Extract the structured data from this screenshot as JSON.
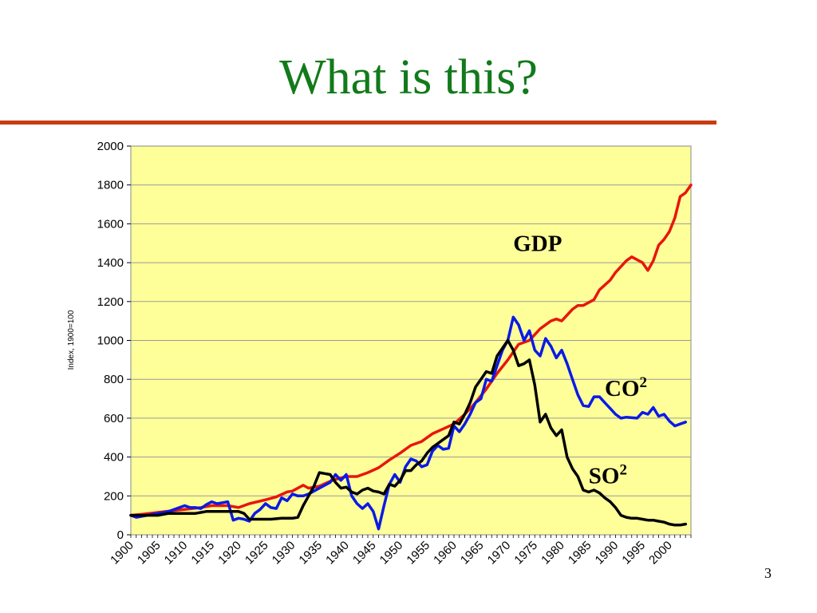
{
  "slide": {
    "title": "What is this?",
    "page_number": "3",
    "title_color": "#127a1a",
    "rule_color": "#c83c12"
  },
  "chart_data": {
    "type": "line",
    "title": "",
    "xlabel": "",
    "ylabel": "Index, 1900=100",
    "xlim": [
      1900,
      2004
    ],
    "ylim": [
      0,
      2000
    ],
    "y_ticks": [
      0,
      200,
      400,
      600,
      800,
      1000,
      1200,
      1400,
      1600,
      1800,
      2000
    ],
    "x_ticks": [
      1900,
      1905,
      1910,
      1915,
      1920,
      1925,
      1930,
      1935,
      1940,
      1945,
      1950,
      1955,
      1960,
      1965,
      1970,
      1975,
      1980,
      1985,
      1990,
      1995,
      2000
    ],
    "grid": true,
    "plot_background": "#ffff99",
    "series": [
      {
        "name": "GDP",
        "label_main": "GDP",
        "label_sup": "",
        "color": "#e8160c",
        "points": [
          [
            1900,
            100
          ],
          [
            1902,
            105
          ],
          [
            1905,
            115
          ],
          [
            1908,
            125
          ],
          [
            1910,
            130
          ],
          [
            1913,
            140
          ],
          [
            1915,
            150
          ],
          [
            1918,
            150
          ],
          [
            1920,
            140
          ],
          [
            1922,
            160
          ],
          [
            1925,
            180
          ],
          [
            1927,
            195
          ],
          [
            1929,
            220
          ],
          [
            1930,
            225
          ],
          [
            1932,
            255
          ],
          [
            1933,
            240
          ],
          [
            1935,
            250
          ],
          [
            1937,
            275
          ],
          [
            1938,
            285
          ],
          [
            1940,
            300
          ],
          [
            1942,
            300
          ],
          [
            1944,
            320
          ],
          [
            1946,
            345
          ],
          [
            1948,
            385
          ],
          [
            1950,
            420
          ],
          [
            1952,
            460
          ],
          [
            1954,
            480
          ],
          [
            1956,
            520
          ],
          [
            1958,
            545
          ],
          [
            1960,
            570
          ],
          [
            1962,
            620
          ],
          [
            1964,
            680
          ],
          [
            1966,
            750
          ],
          [
            1968,
            830
          ],
          [
            1970,
            900
          ],
          [
            1972,
            980
          ],
          [
            1974,
            1000
          ],
          [
            1976,
            1060
          ],
          [
            1978,
            1100
          ],
          [
            1979,
            1110
          ],
          [
            1980,
            1100
          ],
          [
            1982,
            1160
          ],
          [
            1983,
            1180
          ],
          [
            1984,
            1180
          ],
          [
            1986,
            1210
          ],
          [
            1987,
            1260
          ],
          [
            1989,
            1310
          ],
          [
            1990,
            1350
          ],
          [
            1992,
            1410
          ],
          [
            1993,
            1430
          ],
          [
            1995,
            1400
          ],
          [
            1996,
            1360
          ],
          [
            1997,
            1410
          ],
          [
            1998,
            1490
          ],
          [
            1999,
            1520
          ],
          [
            2000,
            1560
          ],
          [
            2001,
            1630
          ],
          [
            2002,
            1740
          ],
          [
            2003,
            1760
          ],
          [
            2004,
            1800
          ]
        ]
      },
      {
        "name": "CO²",
        "label_main": "CO",
        "label_sup": "2",
        "color": "#0a1ae8",
        "points": [
          [
            1900,
            100
          ],
          [
            1901,
            90
          ],
          [
            1903,
            100
          ],
          [
            1905,
            110
          ],
          [
            1907,
            120
          ],
          [
            1909,
            140
          ],
          [
            1910,
            150
          ],
          [
            1911,
            140
          ],
          [
            1912,
            140
          ],
          [
            1913,
            135
          ],
          [
            1914,
            155
          ],
          [
            1915,
            170
          ],
          [
            1916,
            160
          ],
          [
            1917,
            165
          ],
          [
            1918,
            170
          ],
          [
            1919,
            75
          ],
          [
            1920,
            85
          ],
          [
            1921,
            80
          ],
          [
            1922,
            70
          ],
          [
            1923,
            110
          ],
          [
            1924,
            130
          ],
          [
            1925,
            160
          ],
          [
            1926,
            140
          ],
          [
            1927,
            135
          ],
          [
            1928,
            190
          ],
          [
            1929,
            175
          ],
          [
            1930,
            210
          ],
          [
            1931,
            200
          ],
          [
            1932,
            200
          ],
          [
            1933,
            210
          ],
          [
            1935,
            240
          ],
          [
            1937,
            270
          ],
          [
            1938,
            310
          ],
          [
            1939,
            280
          ],
          [
            1940,
            310
          ],
          [
            1941,
            200
          ],
          [
            1942,
            160
          ],
          [
            1943,
            135
          ],
          [
            1944,
            160
          ],
          [
            1945,
            120
          ],
          [
            1946,
            30
          ],
          [
            1947,
            150
          ],
          [
            1948,
            260
          ],
          [
            1949,
            310
          ],
          [
            1950,
            270
          ],
          [
            1951,
            350
          ],
          [
            1952,
            390
          ],
          [
            1953,
            380
          ],
          [
            1954,
            350
          ],
          [
            1955,
            360
          ],
          [
            1956,
            430
          ],
          [
            1957,
            460
          ],
          [
            1958,
            440
          ],
          [
            1959,
            445
          ],
          [
            1960,
            560
          ],
          [
            1961,
            530
          ],
          [
            1962,
            570
          ],
          [
            1963,
            620
          ],
          [
            1964,
            680
          ],
          [
            1965,
            700
          ],
          [
            1966,
            800
          ],
          [
            1967,
            790
          ],
          [
            1968,
            870
          ],
          [
            1969,
            950
          ],
          [
            1970,
            1000
          ],
          [
            1971,
            1120
          ],
          [
            1972,
            1080
          ],
          [
            1973,
            1000
          ],
          [
            1974,
            1050
          ],
          [
            1975,
            950
          ],
          [
            1976,
            920
          ],
          [
            1977,
            1010
          ],
          [
            1978,
            970
          ],
          [
            1979,
            910
          ],
          [
            1980,
            950
          ],
          [
            1981,
            880
          ],
          [
            1982,
            800
          ],
          [
            1983,
            720
          ],
          [
            1984,
            665
          ],
          [
            1985,
            660
          ],
          [
            1986,
            710
          ],
          [
            1987,
            710
          ],
          [
            1988,
            680
          ],
          [
            1989,
            650
          ],
          [
            1990,
            620
          ],
          [
            1991,
            600
          ],
          [
            1992,
            605
          ],
          [
            1994,
            600
          ],
          [
            1995,
            630
          ],
          [
            1996,
            620
          ],
          [
            1997,
            655
          ],
          [
            1998,
            610
          ],
          [
            1999,
            620
          ],
          [
            2000,
            585
          ],
          [
            2001,
            560
          ],
          [
            2002,
            570
          ],
          [
            2003,
            580
          ]
        ]
      },
      {
        "name": "SO²",
        "label_main": "SO",
        "label_sup": "2",
        "color": "#000000",
        "points": [
          [
            1900,
            100
          ],
          [
            1902,
            100
          ],
          [
            1905,
            100
          ],
          [
            1907,
            110
          ],
          [
            1910,
            110
          ],
          [
            1912,
            110
          ],
          [
            1914,
            120
          ],
          [
            1916,
            120
          ],
          [
            1918,
            120
          ],
          [
            1920,
            120
          ],
          [
            1921,
            110
          ],
          [
            1922,
            80
          ],
          [
            1924,
            80
          ],
          [
            1926,
            80
          ],
          [
            1928,
            85
          ],
          [
            1930,
            85
          ],
          [
            1931,
            90
          ],
          [
            1932,
            150
          ],
          [
            1933,
            200
          ],
          [
            1934,
            250
          ],
          [
            1935,
            320
          ],
          [
            1936,
            315
          ],
          [
            1937,
            310
          ],
          [
            1938,
            270
          ],
          [
            1939,
            240
          ],
          [
            1940,
            245
          ],
          [
            1941,
            220
          ],
          [
            1942,
            210
          ],
          [
            1943,
            230
          ],
          [
            1944,
            240
          ],
          [
            1945,
            225
          ],
          [
            1946,
            220
          ],
          [
            1947,
            210
          ],
          [
            1948,
            260
          ],
          [
            1949,
            250
          ],
          [
            1950,
            280
          ],
          [
            1951,
            330
          ],
          [
            1952,
            330
          ],
          [
            1953,
            360
          ],
          [
            1954,
            380
          ],
          [
            1955,
            420
          ],
          [
            1956,
            450
          ],
          [
            1957,
            470
          ],
          [
            1958,
            490
          ],
          [
            1959,
            510
          ],
          [
            1960,
            580
          ],
          [
            1961,
            570
          ],
          [
            1962,
            620
          ],
          [
            1963,
            680
          ],
          [
            1964,
            760
          ],
          [
            1965,
            800
          ],
          [
            1966,
            840
          ],
          [
            1967,
            830
          ],
          [
            1968,
            920
          ],
          [
            1969,
            960
          ],
          [
            1970,
            1000
          ],
          [
            1971,
            950
          ],
          [
            1972,
            870
          ],
          [
            1973,
            880
          ],
          [
            1974,
            900
          ],
          [
            1975,
            770
          ],
          [
            1976,
            580
          ],
          [
            1977,
            620
          ],
          [
            1978,
            550
          ],
          [
            1979,
            510
          ],
          [
            1980,
            540
          ],
          [
            1981,
            400
          ],
          [
            1982,
            340
          ],
          [
            1983,
            300
          ],
          [
            1984,
            230
          ],
          [
            1985,
            220
          ],
          [
            1986,
            230
          ],
          [
            1987,
            215
          ],
          [
            1988,
            190
          ],
          [
            1989,
            170
          ],
          [
            1990,
            140
          ],
          [
            1991,
            100
          ],
          [
            1992,
            90
          ],
          [
            1993,
            85
          ],
          [
            1994,
            85
          ],
          [
            1995,
            80
          ],
          [
            1996,
            75
          ],
          [
            1997,
            75
          ],
          [
            1998,
            70
          ],
          [
            1999,
            65
          ],
          [
            2000,
            55
          ],
          [
            2001,
            50
          ],
          [
            2002,
            50
          ],
          [
            2003,
            55
          ]
        ]
      }
    ]
  }
}
